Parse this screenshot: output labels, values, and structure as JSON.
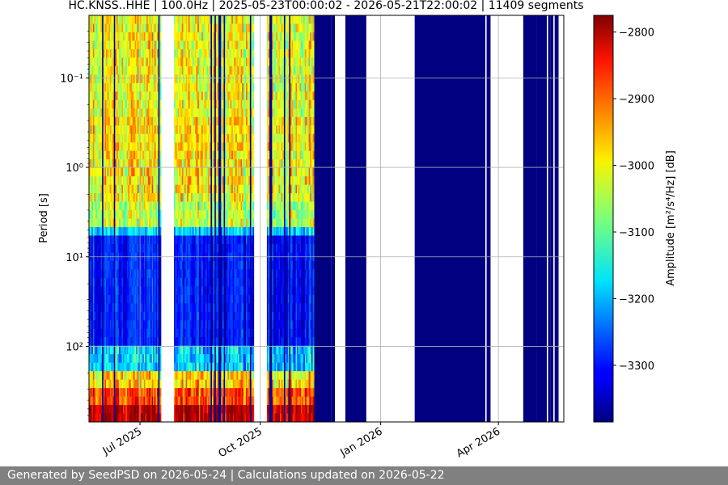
{
  "chart_data": {
    "type": "heatmap",
    "title": "HC.KNSS..HHE | 100.0Hz | 2025-05-23T00:00:02 - 2026-05-21T22:00:02 | 11409 segments",
    "ylabel": "Period [s]",
    "colorbar_label": "Amplitude [m²/s⁴/Hz] [dB]",
    "colormap": "jet",
    "x_range": [
      "2025-05-23",
      "2026-05-21"
    ],
    "x_ticks": [
      {
        "date": "2025-07-01",
        "label": "Jul 2025"
      },
      {
        "date": "2025-10-01",
        "label": "Oct 2025"
      },
      {
        "date": "2026-01-01",
        "label": "Jan 2026"
      },
      {
        "date": "2026-04-01",
        "label": "Apr 2026"
      }
    ],
    "y_scale": "log",
    "y_axis_inverted": true,
    "y_range": [
      0.02,
      700
    ],
    "y_ticks": [
      {
        "value": 0.1,
        "label": "10⁻¹"
      },
      {
        "value": 1,
        "label": "10⁰"
      },
      {
        "value": 10,
        "label": "10¹"
      },
      {
        "value": 100,
        "label": "10²"
      }
    ],
    "color_range": [
      -3385,
      -2775
    ],
    "colorbar_ticks": [
      {
        "value": -2800,
        "label": "−2800"
      },
      {
        "value": -2900,
        "label": "−2900"
      },
      {
        "value": -3000,
        "label": "−3000"
      },
      {
        "value": -3100,
        "label": "−3100"
      },
      {
        "value": -3200,
        "label": "−3200"
      },
      {
        "value": -3300,
        "label": "−3300"
      }
    ],
    "grid": true,
    "active_periods": [
      {
        "start": "2025-05-23",
        "end": "2025-07-17"
      },
      {
        "start": "2025-07-27",
        "end": "2025-09-26"
      },
      {
        "start": "2025-10-06",
        "end": "2025-11-11"
      }
    ],
    "low_value_periods": [
      {
        "start": "2025-11-11",
        "end": "2025-11-24"
      },
      {
        "start": "2025-11-24",
        "end": "2025-11-27"
      },
      {
        "start": "2025-12-05",
        "end": "2025-12-21"
      },
      {
        "start": "2026-01-27",
        "end": "2026-03-22"
      },
      {
        "start": "2026-03-23",
        "end": "2026-03-26"
      },
      {
        "start": "2026-04-20",
        "end": "2026-04-30"
      },
      {
        "start": "2026-04-30",
        "end": "2026-05-08"
      },
      {
        "start": "2026-05-09",
        "end": "2026-05-11"
      },
      {
        "start": "2026-05-11",
        "end": "2026-05-13"
      },
      {
        "start": "2026-05-14",
        "end": "2026-05-17"
      }
    ],
    "gap_periods": [
      {
        "start": "2025-07-17",
        "end": "2025-07-27"
      },
      {
        "start": "2025-09-26",
        "end": "2025-10-06"
      },
      {
        "start": "2025-11-27",
        "end": "2025-12-05"
      },
      {
        "start": "2025-12-21",
        "end": "2026-01-27"
      },
      {
        "start": "2026-03-26",
        "end": "2026-04-20"
      },
      {
        "start": "2026-05-17",
        "end": "2026-05-21"
      }
    ]
  },
  "footer": {
    "text": "Generated by SeedPSD on 2026-05-24 | Calculations updated on 2026-05-22"
  }
}
